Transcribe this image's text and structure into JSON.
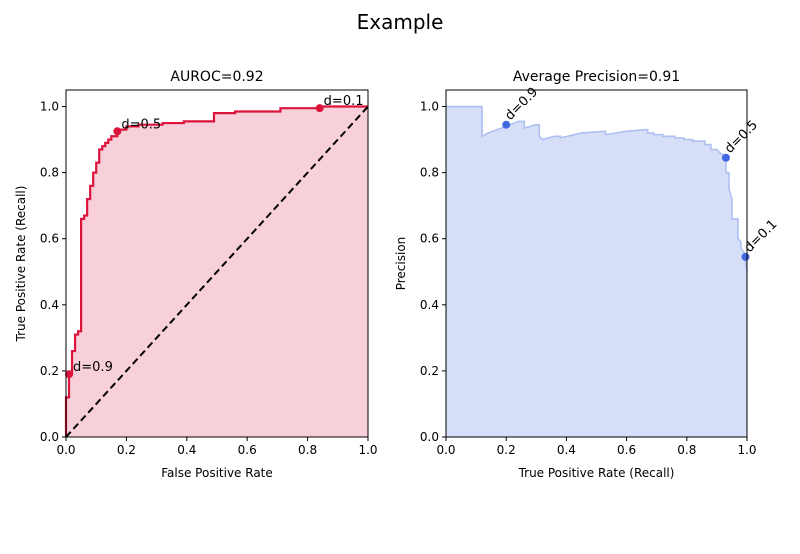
{
  "figure": {
    "suptitle": "Example"
  },
  "chart_data": [
    {
      "type": "area",
      "title": "AUROC=0.92",
      "xlabel": "False Positive Rate",
      "ylabel": "True Positive Rate (Recall)",
      "xlim": [
        0,
        1
      ],
      "ylim": [
        0,
        1.05
      ],
      "xticks": [
        "0.0",
        "0.2",
        "0.4",
        "0.6",
        "0.8",
        "1.0"
      ],
      "yticks": [
        "0.0",
        "0.2",
        "0.4",
        "0.6",
        "0.8",
        "1.0"
      ],
      "grid": false,
      "curve_color": "#dc143c",
      "fill_color": "#f7d0da",
      "curve": [
        [
          0,
          0
        ],
        [
          0,
          0.12
        ],
        [
          0.01,
          0.12
        ],
        [
          0.01,
          0.19
        ],
        [
          0.02,
          0.19
        ],
        [
          0.02,
          0.26
        ],
        [
          0.03,
          0.26
        ],
        [
          0.03,
          0.31
        ],
        [
          0.04,
          0.31
        ],
        [
          0.04,
          0.32
        ],
        [
          0.05,
          0.32
        ],
        [
          0.05,
          0.4
        ],
        [
          0.05,
          0.52
        ],
        [
          0.05,
          0.66
        ],
        [
          0.06,
          0.66
        ],
        [
          0.06,
          0.67
        ],
        [
          0.07,
          0.67
        ],
        [
          0.07,
          0.72
        ],
        [
          0.08,
          0.72
        ],
        [
          0.08,
          0.76
        ],
        [
          0.09,
          0.76
        ],
        [
          0.09,
          0.8
        ],
        [
          0.1,
          0.8
        ],
        [
          0.1,
          0.83
        ],
        [
          0.11,
          0.83
        ],
        [
          0.11,
          0.87
        ],
        [
          0.12,
          0.87
        ],
        [
          0.12,
          0.88
        ],
        [
          0.13,
          0.88
        ],
        [
          0.13,
          0.89
        ],
        [
          0.14,
          0.89
        ],
        [
          0.14,
          0.9
        ],
        [
          0.15,
          0.9
        ],
        [
          0.15,
          0.91
        ],
        [
          0.17,
          0.91
        ],
        [
          0.17,
          0.93
        ],
        [
          0.2,
          0.93
        ],
        [
          0.2,
          0.94
        ],
        [
          0.24,
          0.94
        ],
        [
          0.24,
          0.945
        ],
        [
          0.32,
          0.945
        ],
        [
          0.32,
          0.95
        ],
        [
          0.39,
          0.95
        ],
        [
          0.39,
          0.955
        ],
        [
          0.49,
          0.955
        ],
        [
          0.49,
          0.98
        ],
        [
          0.56,
          0.98
        ],
        [
          0.56,
          0.985
        ],
        [
          0.71,
          0.985
        ],
        [
          0.71,
          0.995
        ],
        [
          0.84,
          0.995
        ],
        [
          0.84,
          1.0
        ],
        [
          1.0,
          1.0
        ]
      ],
      "diagonal": [
        [
          0,
          0
        ],
        [
          1,
          1
        ]
      ],
      "points": [
        {
          "label": "d=0.9",
          "x": 0.01,
          "y": 0.19
        },
        {
          "label": "d=0.5",
          "x": 0.17,
          "y": 0.925
        },
        {
          "label": "d=0.1",
          "x": 0.84,
          "y": 0.995
        }
      ]
    },
    {
      "type": "area",
      "title": "Average Precision=0.91",
      "xlabel": "True Positive Rate (Recall)",
      "ylabel": "Precision",
      "xlim": [
        0,
        1
      ],
      "ylim": [
        0,
        1.05
      ],
      "xticks": [
        "0.0",
        "0.2",
        "0.4",
        "0.6",
        "0.8",
        "1.0"
      ],
      "yticks": [
        "0.0",
        "0.2",
        "0.4",
        "0.6",
        "0.8",
        "1.0"
      ],
      "grid": false,
      "curve_color": "#aebff2",
      "fill_color": "#d7dff8",
      "curve": [
        [
          0,
          1.0
        ],
        [
          0.12,
          1.0
        ],
        [
          0.12,
          0.91
        ],
        [
          0.14,
          0.92
        ],
        [
          0.17,
          0.93
        ],
        [
          0.2,
          0.94
        ],
        [
          0.24,
          0.955
        ],
        [
          0.26,
          0.955
        ],
        [
          0.26,
          0.935
        ],
        [
          0.3,
          0.945
        ],
        [
          0.31,
          0.945
        ],
        [
          0.31,
          0.91
        ],
        [
          0.32,
          0.9
        ],
        [
          0.36,
          0.91
        ],
        [
          0.38,
          0.91
        ],
        [
          0.38,
          0.905
        ],
        [
          0.45,
          0.92
        ],
        [
          0.53,
          0.925
        ],
        [
          0.53,
          0.915
        ],
        [
          0.6,
          0.925
        ],
        [
          0.66,
          0.93
        ],
        [
          0.67,
          0.93
        ],
        [
          0.67,
          0.92
        ],
        [
          0.69,
          0.92
        ],
        [
          0.69,
          0.915
        ],
        [
          0.72,
          0.915
        ],
        [
          0.72,
          0.91
        ],
        [
          0.76,
          0.91
        ],
        [
          0.76,
          0.905
        ],
        [
          0.79,
          0.905
        ],
        [
          0.79,
          0.9
        ],
        [
          0.82,
          0.9
        ],
        [
          0.82,
          0.895
        ],
        [
          0.86,
          0.895
        ],
        [
          0.86,
          0.885
        ],
        [
          0.88,
          0.885
        ],
        [
          0.88,
          0.87
        ],
        [
          0.9,
          0.87
        ],
        [
          0.91,
          0.86
        ],
        [
          0.93,
          0.845
        ],
        [
          0.93,
          0.8
        ],
        [
          0.94,
          0.8
        ],
        [
          0.94,
          0.75
        ],
        [
          0.95,
          0.72
        ],
        [
          0.95,
          0.66
        ],
        [
          0.97,
          0.66
        ],
        [
          0.97,
          0.6
        ],
        [
          0.98,
          0.59
        ],
        [
          0.98,
          0.57
        ],
        [
          0.99,
          0.56
        ],
        [
          1.0,
          0.5
        ]
      ],
      "points": [
        {
          "label": "d=0.9",
          "x": 0.2,
          "y": 0.945
        },
        {
          "label": "d=0.5",
          "x": 0.93,
          "y": 0.845
        },
        {
          "label": "d=0.1",
          "x": 0.995,
          "y": 0.545
        }
      ]
    }
  ]
}
